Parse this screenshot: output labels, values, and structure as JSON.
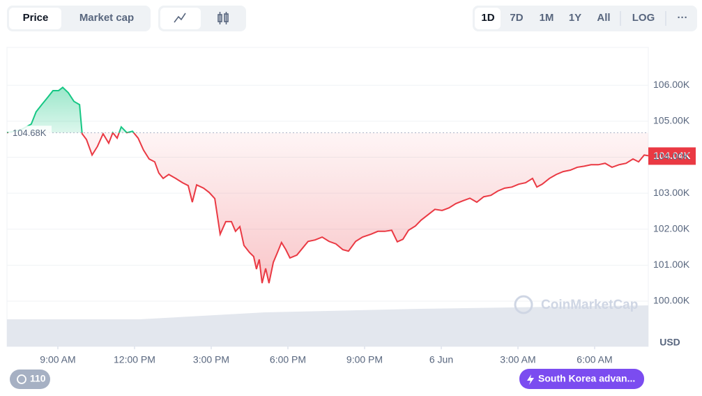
{
  "toolbar": {
    "tabs": [
      "Price",
      "Market cap"
    ],
    "ranges": [
      "1D",
      "7D",
      "1M",
      "1Y",
      "All"
    ],
    "log": "LOG",
    "more": "···"
  },
  "watermark": "CoinMarketCap",
  "footer": {
    "history_count": 110,
    "news": "South Korea advan..."
  },
  "chart_data": {
    "type": "area",
    "y_axis_label": "USD",
    "x": [
      7.01,
      7.55,
      7.96,
      8.15,
      8.37,
      8.59,
      8.81,
      9.03,
      9.19,
      9.41,
      9.63,
      9.85,
      9.95,
      10.12,
      10.34,
      10.55,
      10.77,
      10.99,
      11.15,
      11.32,
      11.48,
      11.7,
      11.92,
      12.14,
      12.35,
      12.57,
      12.79,
      12.95,
      13.12,
      13.34,
      13.61,
      13.88,
      14.1,
      14.26,
      14.43,
      14.7,
      14.92,
      15.14,
      15.35,
      15.57,
      15.79,
      15.95,
      16.12,
      16.28,
      16.5,
      16.66,
      16.77,
      16.88,
      16.99,
      17.13,
      17.26,
      17.43,
      17.59,
      17.75,
      17.92,
      18.08,
      18.35,
      18.57,
      18.79,
      19.06,
      19.34,
      19.61,
      19.88,
      20.15,
      20.37,
      20.65,
      20.92,
      21.25,
      21.52,
      21.79,
      22.06,
      22.28,
      22.5,
      22.72,
      22.99,
      23.21,
      23.48,
      23.75,
      24.03,
      24.3,
      24.57,
      24.85,
      25.12,
      25.39,
      25.66,
      25.94,
      26.21,
      26.48,
      26.76,
      27.03,
      27.3,
      27.57,
      27.74,
      27.95,
      28.23,
      28.5,
      28.77,
      29.05,
      29.32,
      29.59,
      29.86,
      30.14,
      30.41,
      30.68,
      30.95,
      31.23,
      31.5,
      31.72,
      31.94,
      32.1
    ],
    "series": [
      {
        "name": "Price",
        "values": [
          104680,
          104760,
          104920,
          105260,
          105460,
          105650,
          105850,
          105850,
          105940,
          105790,
          105550,
          105460,
          104650,
          104490,
          104060,
          104300,
          104650,
          104390,
          104680,
          104530,
          104840,
          104680,
          104720,
          104530,
          104200,
          103950,
          103870,
          103560,
          103410,
          103520,
          103410,
          103290,
          103210,
          102750,
          103230,
          103140,
          103020,
          102850,
          101860,
          102210,
          102210,
          101940,
          102070,
          101550,
          101350,
          101240,
          100890,
          101160,
          100500,
          100910,
          100500,
          101080,
          101350,
          101630,
          101430,
          101200,
          101280,
          101470,
          101660,
          101700,
          101780,
          101660,
          101590,
          101430,
          101390,
          101660,
          101780,
          101860,
          101940,
          101940,
          101970,
          101650,
          101720,
          101970,
          102090,
          102250,
          102400,
          102550,
          102520,
          102590,
          102710,
          102790,
          102860,
          102750,
          102900,
          102940,
          103060,
          103140,
          103170,
          103250,
          103290,
          103410,
          103170,
          103250,
          103410,
          103520,
          103600,
          103640,
          103720,
          103750,
          103790,
          103790,
          103830,
          103720,
          103790,
          103830,
          103950,
          103870,
          104060,
          104040
        ]
      }
    ],
    "color_up": "#16c784",
    "color_down": "#ea3943",
    "reference": {
      "value": 104680,
      "label": "104.68K"
    },
    "current": {
      "value": 104040,
      "label": "104.04K"
    },
    "xlim": [
      7.01,
      32.1
    ],
    "xticks": [
      {
        "value": 9,
        "label": "9:00 AM"
      },
      {
        "value": 12,
        "label": "12:00 PM"
      },
      {
        "value": 15,
        "label": "3:00 PM"
      },
      {
        "value": 18,
        "label": "6:00 PM"
      },
      {
        "value": 21,
        "label": "9:00 PM"
      },
      {
        "value": 24,
        "label": "6 Jun"
      },
      {
        "value": 27,
        "label": "3:00 AM"
      },
      {
        "value": 30,
        "label": "6:00 AM"
      }
    ],
    "ylim": [
      98740,
      107050
    ],
    "yticks": [
      {
        "value": 100000,
        "label": "100.00K"
      },
      {
        "value": 101000,
        "label": "101.00K"
      },
      {
        "value": 102000,
        "label": "102.00K"
      },
      {
        "value": 103000,
        "label": "103.00K"
      },
      {
        "value": 104000,
        "label": "104.00K"
      },
      {
        "value": 105000,
        "label": "105.00K"
      },
      {
        "value": 106000,
        "label": "106.00K"
      }
    ],
    "grid": true
  }
}
